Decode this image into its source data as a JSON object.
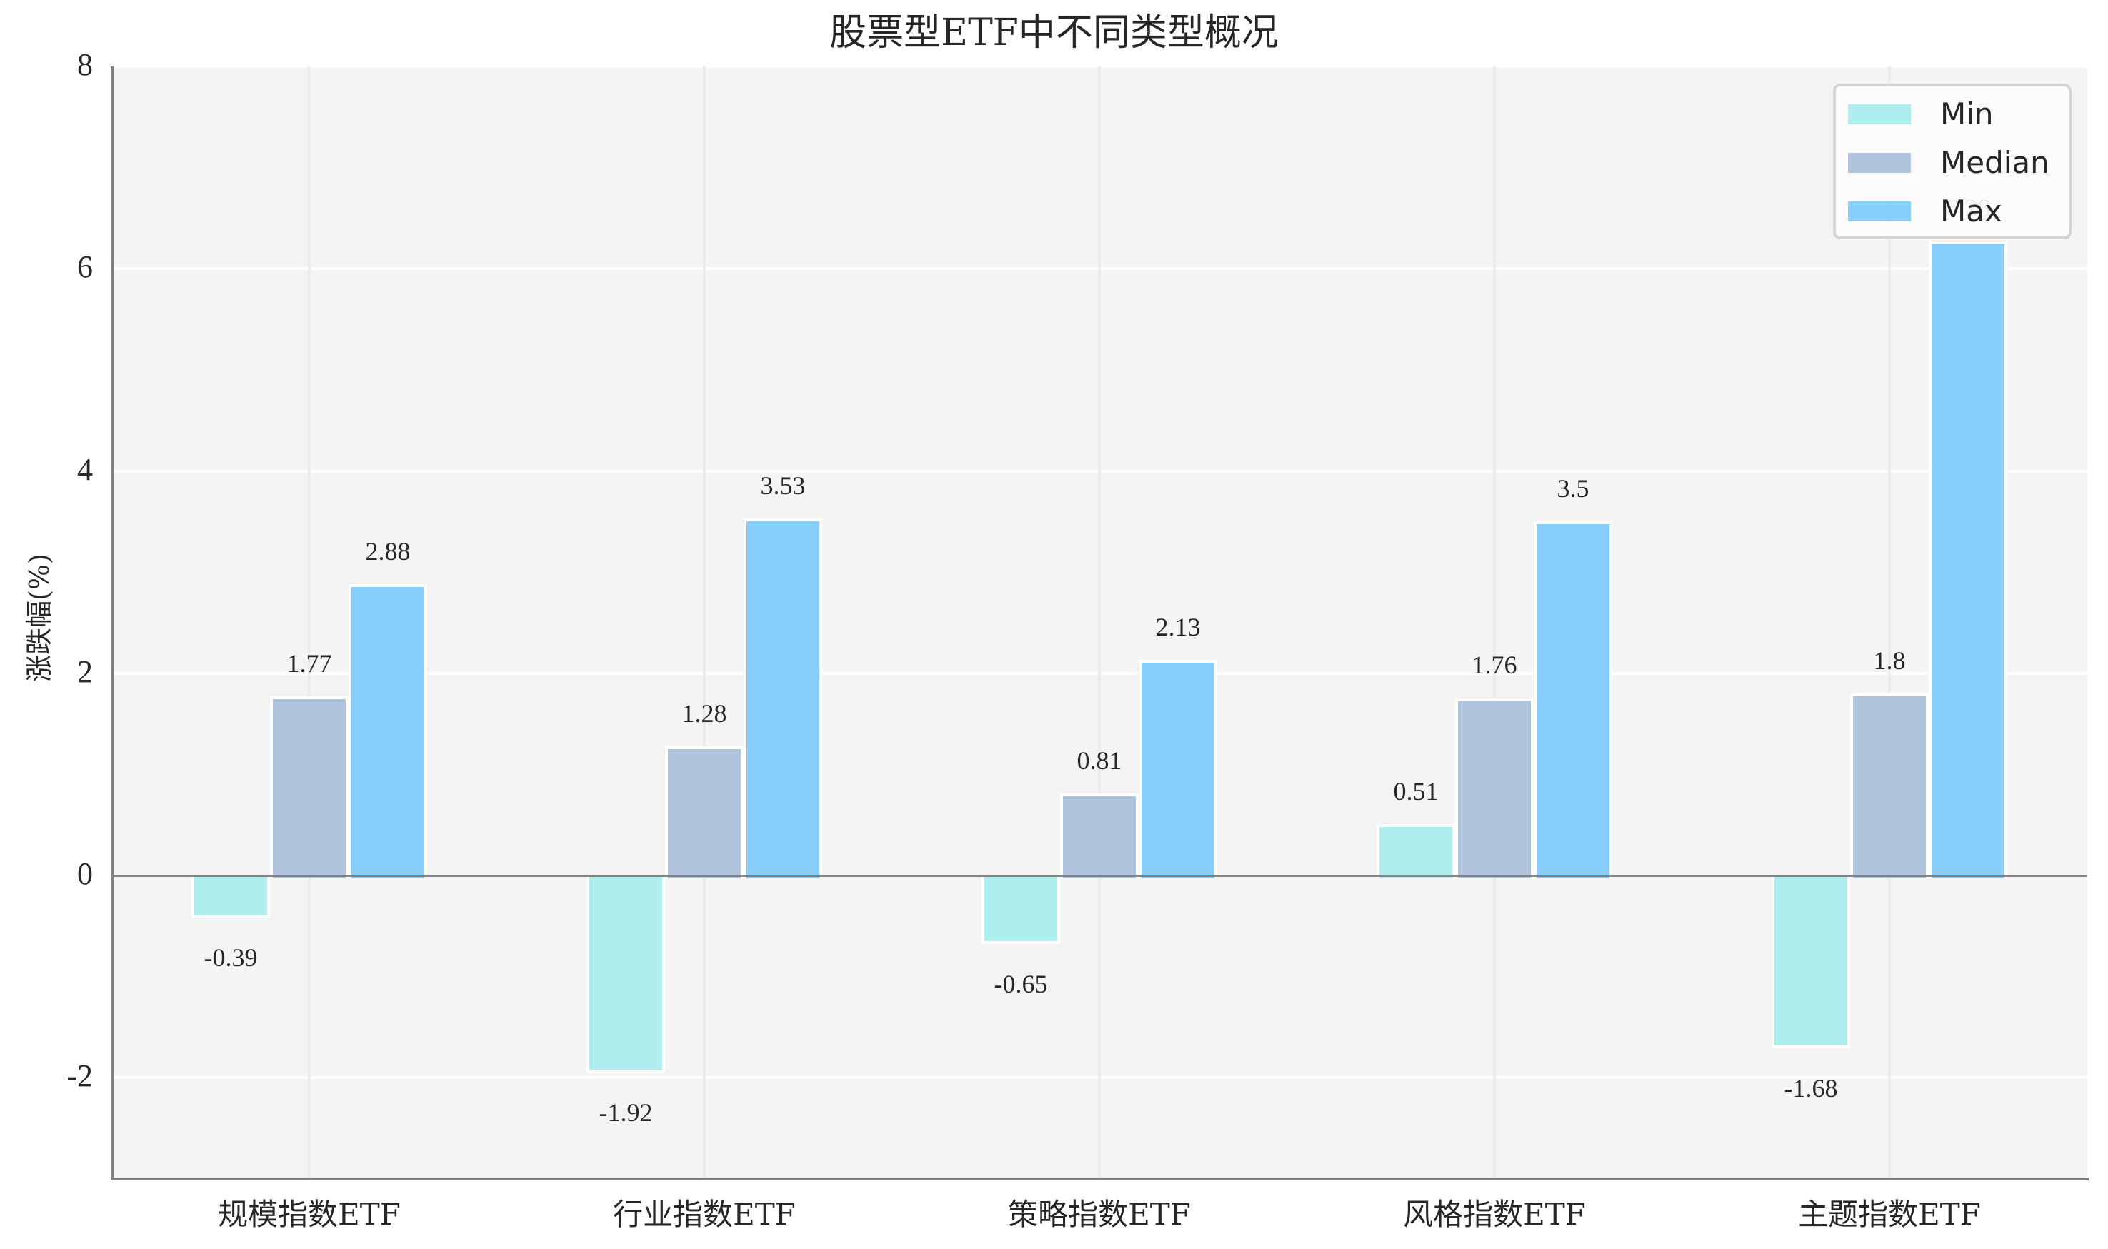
{
  "title": "股票型ETF中不同类型概况",
  "y_axis": {
    "label": "涨跌幅(%)",
    "ticks": [
      "8",
      "6",
      "4",
      "2",
      "0",
      "-2"
    ]
  },
  "x_axis": {
    "ticks": [
      "规模指数ETF",
      "行业指数ETF",
      "策略指数ETF",
      "风格指数ETF",
      "主题指数ETF"
    ]
  },
  "legend": {
    "items": [
      {
        "label": "Min",
        "color": "#afeeee"
      },
      {
        "label": "Median",
        "color": "#b0c4de"
      },
      {
        "label": "Max",
        "color": "#87cefa"
      }
    ]
  },
  "value_labels": {
    "min": [
      "-0.39",
      "-1.92",
      "-0.65",
      "0.51",
      "-1.68"
    ],
    "median": [
      "1.77",
      "1.28",
      "0.81",
      "1.76",
      "1.8"
    ],
    "max": [
      "2.88",
      "3.53",
      "2.13",
      "3.5",
      "6.28"
    ]
  },
  "chart_data": {
    "type": "bar",
    "title": "股票型ETF中不同类型概况",
    "xlabel": "",
    "ylabel": "涨跌幅(%)",
    "categories": [
      "规模指数ETF",
      "行业指数ETF",
      "策略指数ETF",
      "风格指数ETF",
      "主题指数ETF"
    ],
    "series": [
      {
        "name": "Min",
        "color": "#afeeee",
        "values": [
          -0.39,
          -1.92,
          -0.65,
          0.51,
          -1.68
        ]
      },
      {
        "name": "Median",
        "color": "#b0c4de",
        "values": [
          1.77,
          1.28,
          0.81,
          1.76,
          1.8
        ]
      },
      {
        "name": "Max",
        "color": "#87cefa",
        "values": [
          2.88,
          3.53,
          2.13,
          3.5,
          6.28
        ]
      }
    ],
    "ylim": [
      -3,
      8
    ],
    "yticks": [
      -2,
      0,
      2,
      4,
      6,
      8
    ],
    "grid": true,
    "legend_position": "upper right",
    "background": "#f4f4f4"
  }
}
